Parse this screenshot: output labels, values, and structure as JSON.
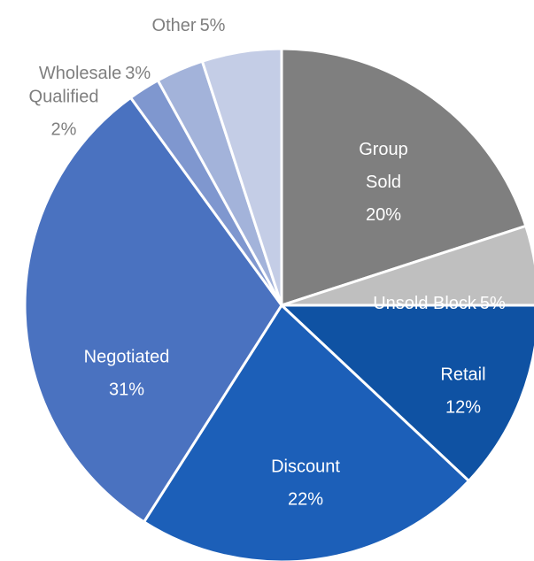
{
  "chart_data": {
    "type": "pie",
    "categories": [
      "Group Sold",
      "Unsold Block",
      "Retail",
      "Discount",
      "Negotiated",
      "Qualified",
      "Wholesale",
      "Other"
    ],
    "values": [
      20,
      5,
      12,
      22,
      31,
      2,
      3,
      5
    ],
    "value_labels": [
      "20%",
      "5%",
      "12%",
      "22%",
      "31%",
      "2%",
      "3%",
      "5%"
    ],
    "colors": [
      "#7f7f7f",
      "#bfbfbf",
      "#0f52a3",
      "#1c5fb8",
      "#4a72c0",
      "#7f97cf",
      "#a3b3da",
      "#c4cde6"
    ]
  }
}
